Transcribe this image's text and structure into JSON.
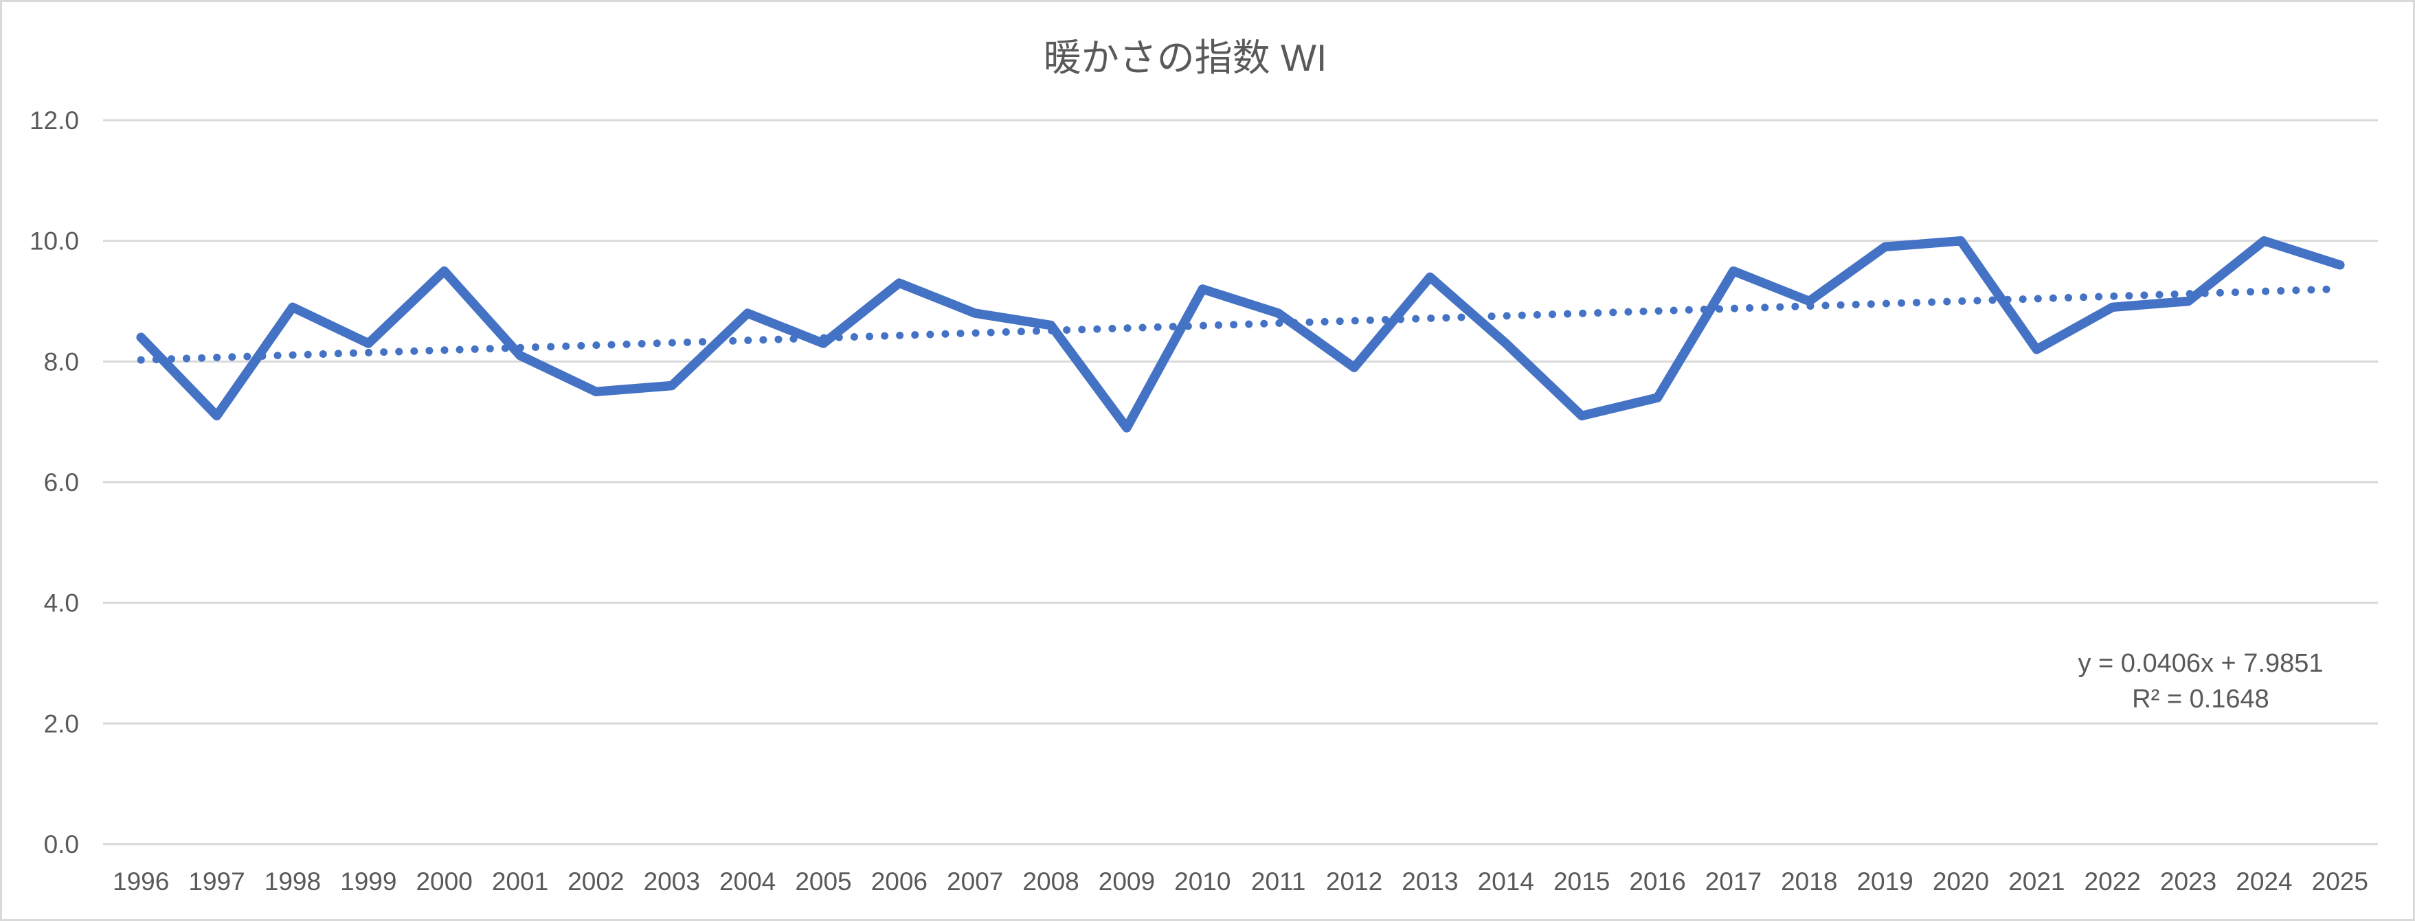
{
  "chart_title": "暖かさの指数 WI",
  "annotation": {
    "equation": "y = 0.0406x + 7.9851",
    "r_squared": "R² = 0.1648"
  },
  "colors": {
    "series_line": "#4472C4",
    "trendline": "#4472C4",
    "gridline": "#D9D9D9",
    "axis_line": "#D9D9D9",
    "text": "#595959",
    "background": "#FFFFFF",
    "frame_border": "#D9D9D9"
  },
  "chart_data": {
    "type": "line",
    "title": "暖かさの指数 WI",
    "xlabel": "",
    "ylabel": "",
    "categories": [
      "1996",
      "1997",
      "1998",
      "1999",
      "2000",
      "2001",
      "2002",
      "2003",
      "2004",
      "2005",
      "2006",
      "2007",
      "2008",
      "2009",
      "2010",
      "2011",
      "2012",
      "2013",
      "2014",
      "2015",
      "2016",
      "2017",
      "2018",
      "2019",
      "2020",
      "2021",
      "2022",
      "2023",
      "2024",
      "2025"
    ],
    "series": [
      {
        "name": "暖かさの指数 WI",
        "values": [
          8.4,
          7.1,
          8.9,
          8.3,
          9.5,
          8.1,
          7.5,
          7.6,
          8.8,
          8.3,
          9.3,
          8.8,
          8.6,
          6.9,
          9.2,
          8.8,
          7.9,
          9.4,
          8.3,
          7.1,
          7.4,
          9.5,
          9.0,
          9.9,
          10.0,
          8.2,
          8.9,
          9.0,
          10.0,
          9.6
        ]
      }
    ],
    "trendline": {
      "kind": "linear",
      "slope": 0.0406,
      "intercept": 7.9851,
      "equation_label": "y = 0.0406x + 7.9851",
      "r2_label": "R² = 0.1648",
      "style": "dotted"
    },
    "ylim": [
      0,
      12
    ],
    "ytick_labels": [
      "0.0",
      "2.0",
      "4.0",
      "6.0",
      "8.0",
      "10.0",
      "12.0"
    ],
    "grid": true,
    "legend_position": "none"
  }
}
